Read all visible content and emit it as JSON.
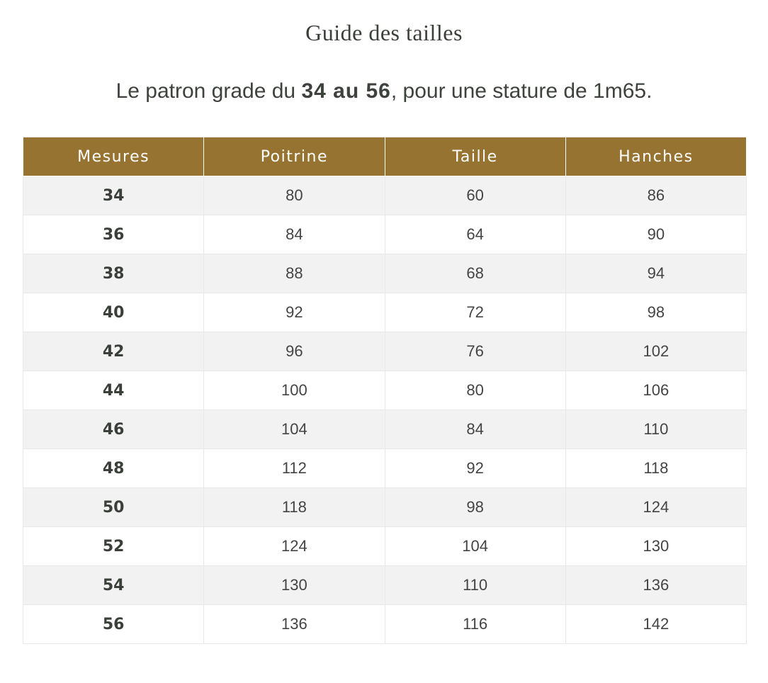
{
  "header": {
    "title": "Guide des tailles",
    "subtitle": {
      "before": "Le patron grade du ",
      "bold": "34 au 56",
      "after": ", pour une stature de 1m65."
    }
  },
  "table": {
    "columns": [
      "Mesures",
      "Poitrine",
      "Taille",
      "Hanches"
    ],
    "rows": [
      [
        34,
        80,
        60,
        86
      ],
      [
        36,
        84,
        64,
        90
      ],
      [
        38,
        88,
        68,
        94
      ],
      [
        40,
        92,
        72,
        98
      ],
      [
        42,
        96,
        76,
        102
      ],
      [
        44,
        100,
        80,
        106
      ],
      [
        46,
        104,
        84,
        110
      ],
      [
        48,
        112,
        92,
        118
      ],
      [
        50,
        118,
        98,
        124
      ],
      [
        52,
        124,
        104,
        130
      ],
      [
        54,
        130,
        110,
        136
      ],
      [
        56,
        136,
        116,
        142
      ]
    ]
  }
}
